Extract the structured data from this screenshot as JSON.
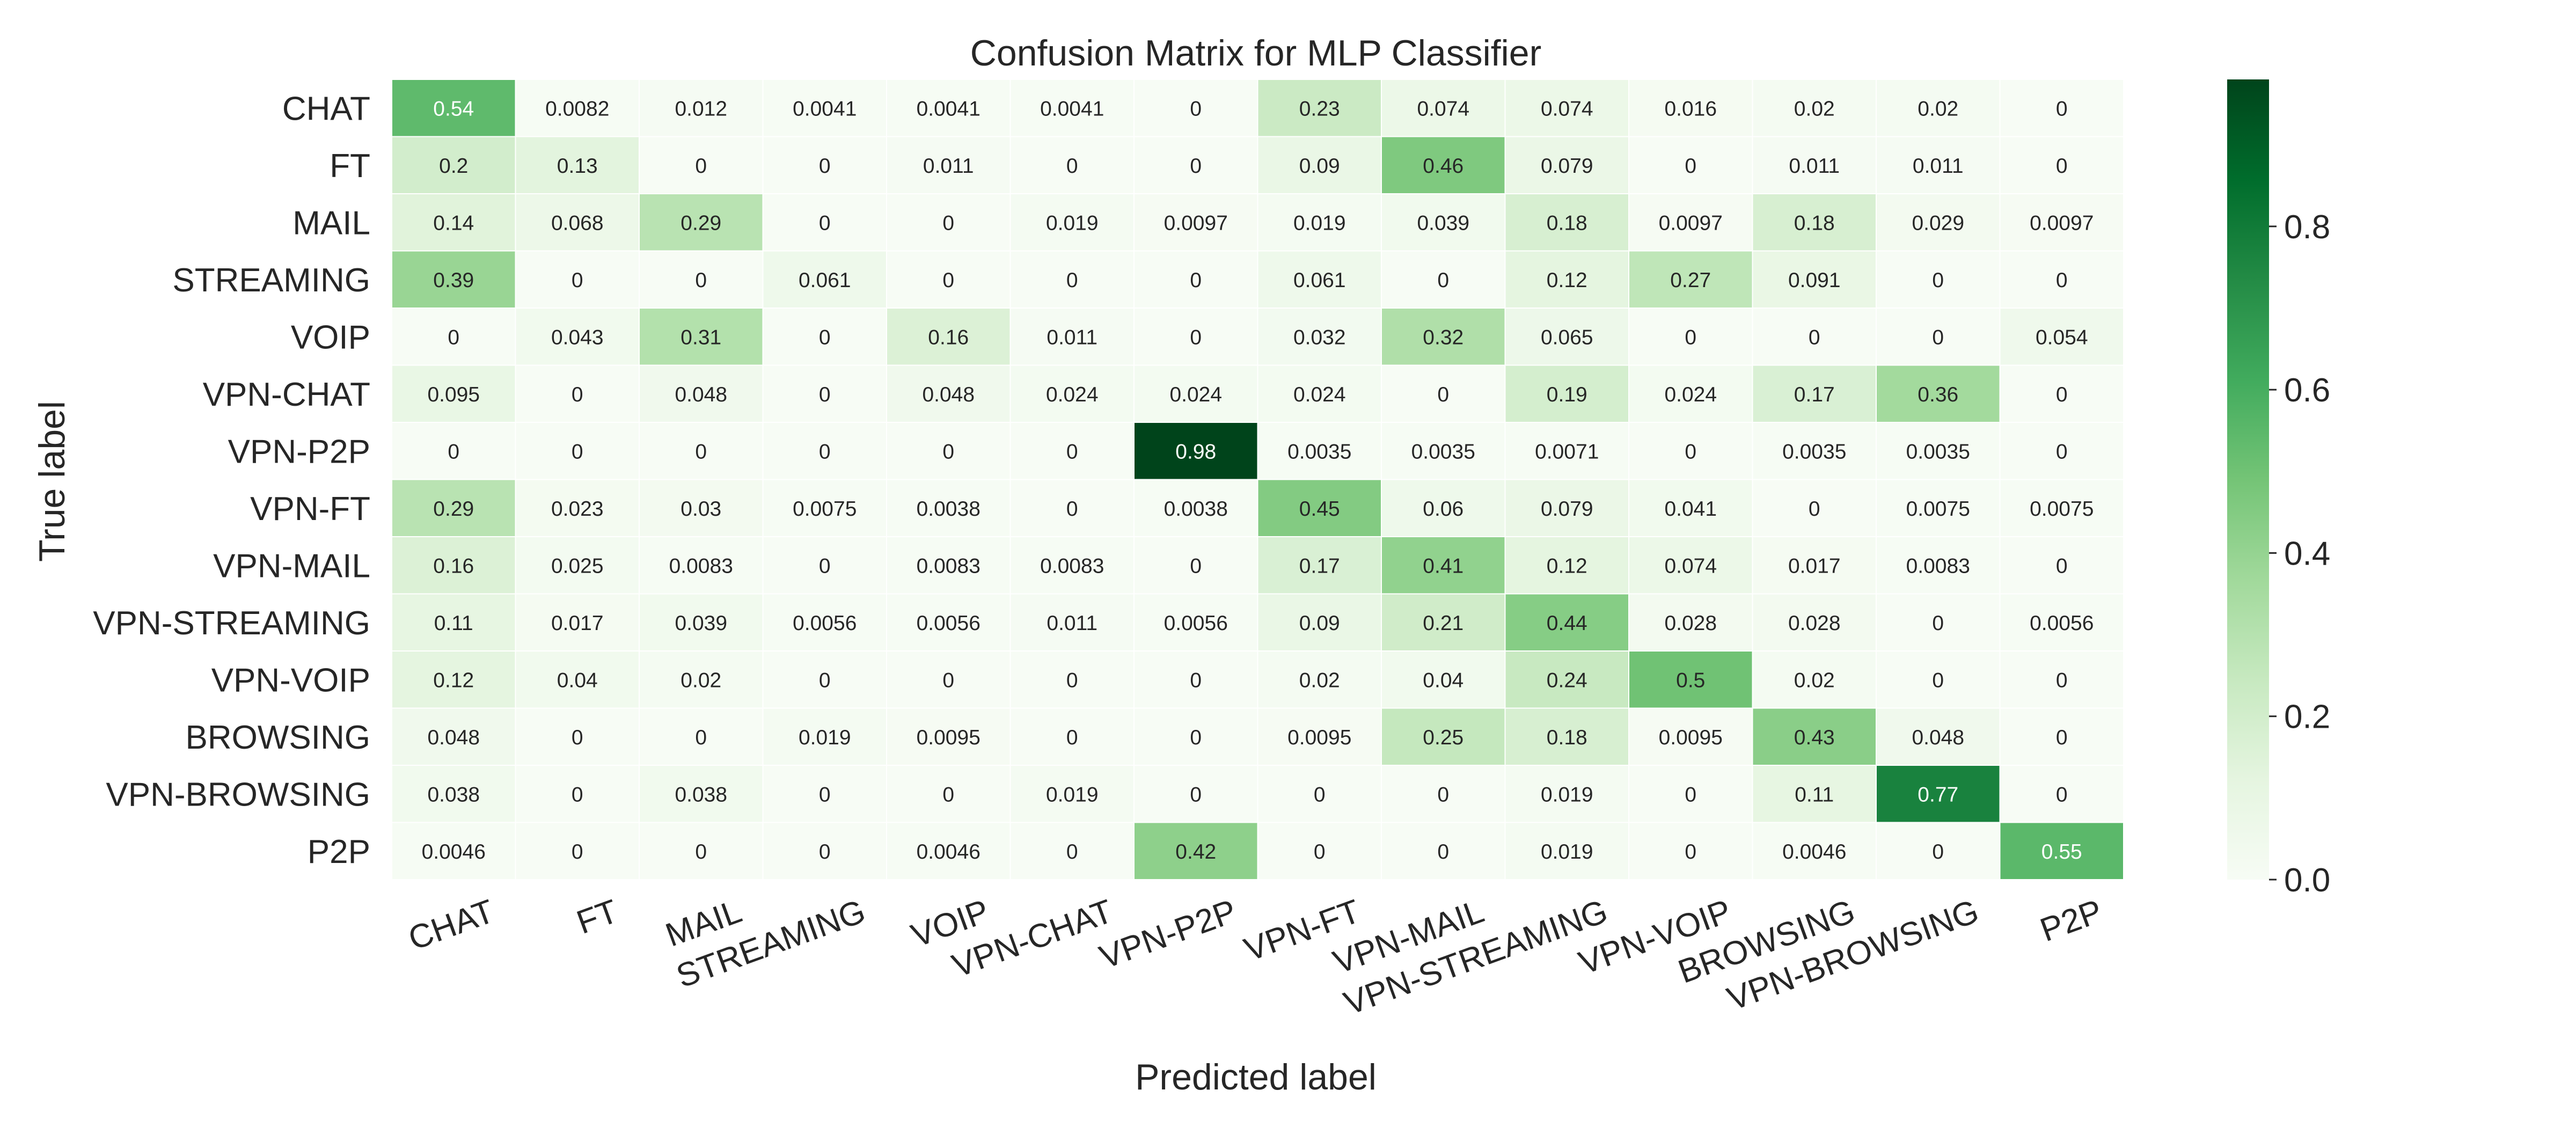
{
  "chart_data": {
    "type": "heatmap",
    "title": "Confusion Matrix for MLP Classifier",
    "xlabel": "Predicted label",
    "ylabel": "True label",
    "x_categories": [
      "CHAT",
      "FT",
      "MAIL",
      "STREAMING",
      "VOIP",
      "VPN-CHAT",
      "VPN-P2P",
      "VPN-FT",
      "VPN-MAIL",
      "VPN-STREAMING",
      "VPN-VOIP",
      "BROWSING",
      "VPN-BROWSING",
      "P2P"
    ],
    "y_categories": [
      "CHAT",
      "FT",
      "MAIL",
      "STREAMING",
      "VOIP",
      "VPN-CHAT",
      "VPN-P2P",
      "VPN-FT",
      "VPN-MAIL",
      "VPN-STREAMING",
      "VPN-VOIP",
      "BROWSING",
      "VPN-BROWSING",
      "P2P"
    ],
    "values": [
      [
        "0.54",
        "0.0082",
        "0.012",
        "0.0041",
        "0.0041",
        "0.0041",
        "0",
        "0.23",
        "0.074",
        "0.074",
        "0.016",
        "0.02",
        "0.02",
        "0"
      ],
      [
        "0.2",
        "0.13",
        "0",
        "0",
        "0.011",
        "0",
        "0",
        "0.09",
        "0.46",
        "0.079",
        "0",
        "0.011",
        "0.011",
        "0"
      ],
      [
        "0.14",
        "0.068",
        "0.29",
        "0",
        "0",
        "0.019",
        "0.0097",
        "0.019",
        "0.039",
        "0.18",
        "0.0097",
        "0.18",
        "0.029",
        "0.0097"
      ],
      [
        "0.39",
        "0",
        "0",
        "0.061",
        "0",
        "0",
        "0",
        "0.061",
        "0",
        "0.12",
        "0.27",
        "0.091",
        "0",
        "0"
      ],
      [
        "0",
        "0.043",
        "0.31",
        "0",
        "0.16",
        "0.011",
        "0",
        "0.032",
        "0.32",
        "0.065",
        "0",
        "0",
        "0",
        "0.054"
      ],
      [
        "0.095",
        "0",
        "0.048",
        "0",
        "0.048",
        "0.024",
        "0.024",
        "0.024",
        "0",
        "0.19",
        "0.024",
        "0.17",
        "0.36",
        "0"
      ],
      [
        "0",
        "0",
        "0",
        "0",
        "0",
        "0",
        "0.98",
        "0.0035",
        "0.0035",
        "0.0071",
        "0",
        "0.0035",
        "0.0035",
        "0"
      ],
      [
        "0.29",
        "0.023",
        "0.03",
        "0.0075",
        "0.0038",
        "0",
        "0.0038",
        "0.45",
        "0.06",
        "0.079",
        "0.041",
        "0",
        "0.0075",
        "0.0075"
      ],
      [
        "0.16",
        "0.025",
        "0.0083",
        "0",
        "0.0083",
        "0.0083",
        "0",
        "0.17",
        "0.41",
        "0.12",
        "0.074",
        "0.017",
        "0.0083",
        "0"
      ],
      [
        "0.11",
        "0.017",
        "0.039",
        "0.0056",
        "0.0056",
        "0.011",
        "0.0056",
        "0.09",
        "0.21",
        "0.44",
        "0.028",
        "0.028",
        "0",
        "0.0056"
      ],
      [
        "0.12",
        "0.04",
        "0.02",
        "0",
        "0",
        "0",
        "0",
        "0.02",
        "0.04",
        "0.24",
        "0.5",
        "0.02",
        "0",
        "0"
      ],
      [
        "0.048",
        "0",
        "0",
        "0.019",
        "0.0095",
        "0",
        "0",
        "0.0095",
        "0.25",
        "0.18",
        "0.0095",
        "0.43",
        "0.048",
        "0"
      ],
      [
        "0.038",
        "0",
        "0.038",
        "0",
        "0",
        "0.019",
        "0",
        "0",
        "0",
        "0.019",
        "0",
        "0.11",
        "0.77",
        "0"
      ],
      [
        "0.0046",
        "0",
        "0",
        "0",
        "0.0046",
        "0",
        "0.42",
        "0",
        "0",
        "0.019",
        "0",
        "0.0046",
        "0",
        "0.55"
      ]
    ],
    "colormap": "Greens",
    "colorbar": {
      "range": [
        0,
        0.98
      ],
      "ticks": [
        "0.0",
        "0.2",
        "0.4",
        "0.6",
        "0.8"
      ]
    }
  }
}
